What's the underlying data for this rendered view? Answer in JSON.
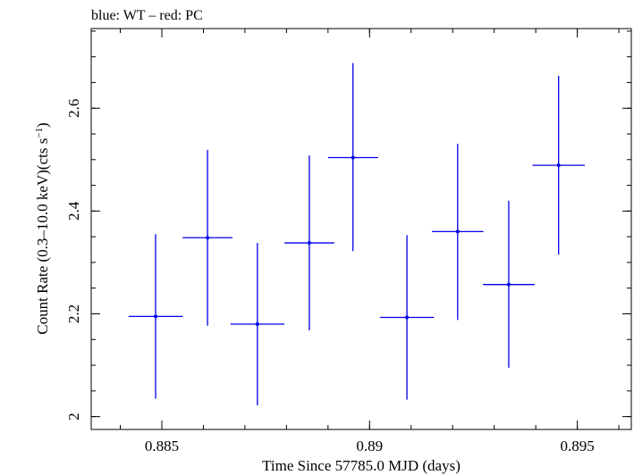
{
  "chart_data": {
    "type": "scatter",
    "title": "blue: WT – red: PC",
    "xlabel": "Time Since 57785.0 MJD (days)",
    "ylabel_main": "Count Rate (0.3–10.0 keV)(cts s",
    "ylabel_sup": "−1",
    "ylabel_end": ")",
    "xlim": [
      0.8833,
      0.8963
    ],
    "ylim": [
      1.975,
      2.755
    ],
    "x_ticks": [
      {
        "value": 0.885,
        "label": "0.885"
      },
      {
        "value": 0.89,
        "label": "0.89"
      },
      {
        "value": 0.895,
        "label": "0.895"
      }
    ],
    "x_minor_step": 0.001,
    "y_ticks": [
      {
        "value": 2.0,
        "label": "2"
      },
      {
        "value": 2.2,
        "label": "2.2"
      },
      {
        "value": 2.4,
        "label": "2.4"
      },
      {
        "value": 2.6,
        "label": "2.6"
      }
    ],
    "y_minor_step": 0.05,
    "series": [
      {
        "name": "WT",
        "color": "#0000ee",
        "points": [
          {
            "x": 0.88485,
            "xerr": 0.00065,
            "y": 2.195,
            "ylo": 2.035,
            "yhi": 2.355
          },
          {
            "x": 0.8861,
            "xerr": 0.0006,
            "y": 2.348,
            "ylo": 2.177,
            "yhi": 2.519
          },
          {
            "x": 0.8873,
            "xerr": 0.00065,
            "y": 2.18,
            "ylo": 2.022,
            "yhi": 2.338
          },
          {
            "x": 0.88855,
            "xerr": 0.0006,
            "y": 2.338,
            "ylo": 2.168,
            "yhi": 2.508
          },
          {
            "x": 0.8896,
            "xerr": 0.0006,
            "y": 2.504,
            "ylo": 2.322,
            "yhi": 2.688
          },
          {
            "x": 0.8909,
            "xerr": 0.00065,
            "y": 2.193,
            "ylo": 2.033,
            "yhi": 2.353
          },
          {
            "x": 0.89212,
            "xerr": 0.00062,
            "y": 2.36,
            "ylo": 2.188,
            "yhi": 2.531
          },
          {
            "x": 0.89335,
            "xerr": 0.00062,
            "y": 2.257,
            "ylo": 2.095,
            "yhi": 2.42
          },
          {
            "x": 0.89455,
            "xerr": 0.00063,
            "y": 2.489,
            "ylo": 2.315,
            "yhi": 2.663
          }
        ]
      }
    ]
  }
}
